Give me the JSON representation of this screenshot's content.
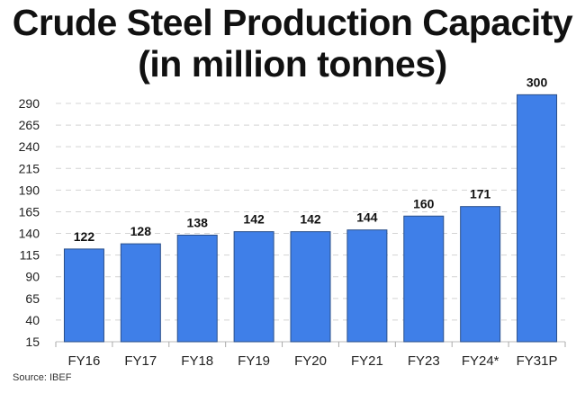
{
  "chart_data": {
    "type": "bar",
    "title": "Crude Steel Production Capacity",
    "subtitle": "(in million tonnes)",
    "categories": [
      "FY16",
      "FY17",
      "FY18",
      "FY19",
      "FY20",
      "FY21",
      "FY23",
      "FY24*",
      "FY31P"
    ],
    "values": [
      122,
      128,
      138,
      142,
      142,
      144,
      160,
      171,
      300
    ],
    "xlabel": "",
    "ylabel": "",
    "ylim": [
      15,
      300
    ],
    "yticks": [
      15,
      40,
      65,
      90,
      115,
      140,
      165,
      190,
      215,
      240,
      265,
      290
    ],
    "grid": true,
    "legend": "none",
    "bar_color": "#3f7fe8",
    "bar_edge_color": "#2a4f8a",
    "source": "Source: IBEF"
  }
}
